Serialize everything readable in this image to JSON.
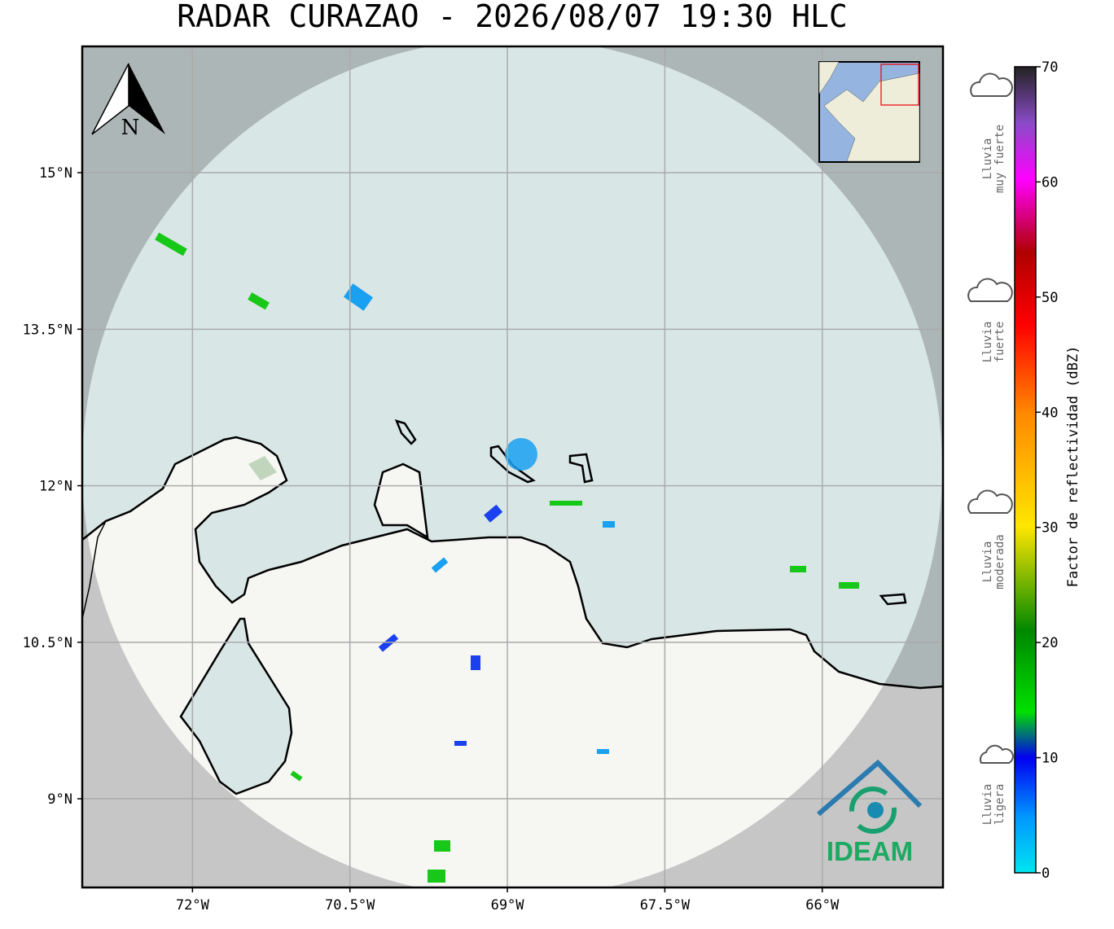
{
  "title": "RADAR CURAZAO - 2026/08/07 19:30 HLC",
  "map": {
    "xlim": [
      -73.05,
      -64.85
    ],
    "ylim": [
      8.15,
      16.21
    ],
    "xticks": [
      {
        "value": -72,
        "label": "72°W"
      },
      {
        "value": -70.5,
        "label": "70.5°W"
      },
      {
        "value": -69,
        "label": "69°W"
      },
      {
        "value": -67.5,
        "label": "67.5°W"
      },
      {
        "value": -66,
        "label": "66°W"
      }
    ],
    "yticks": [
      {
        "value": 15,
        "label": "15°N"
      },
      {
        "value": 13.5,
        "label": "13.5°N"
      },
      {
        "value": 12,
        "label": "12°N"
      },
      {
        "value": 10.5,
        "label": "10.5°N"
      },
      {
        "value": 9,
        "label": "9°N"
      }
    ],
    "grid": true,
    "compass": "N",
    "logo": "IDEAM"
  },
  "colorbar": {
    "label": "Factor de reflectividad (dBZ)",
    "lim": [
      0,
      70
    ],
    "ticks": [
      0,
      10,
      20,
      30,
      40,
      50,
      60,
      70
    ]
  },
  "legend": [
    {
      "lines": [
        "Lluvia",
        "muy fuerte"
      ]
    },
    {
      "lines": [
        "Lluvia",
        "fuerte"
      ]
    },
    {
      "lines": [
        "Lluvia",
        "moderada"
      ]
    },
    {
      "lines": [
        "Lluvia",
        "ligera"
      ]
    }
  ]
}
